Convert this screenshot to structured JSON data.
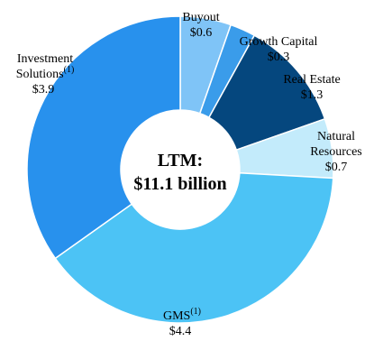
{
  "chart_data": {
    "type": "pie",
    "donut": true,
    "center_label": [
      "LTM:",
      "$11.1 billion"
    ],
    "unit": "$",
    "slices": [
      {
        "label": "Buyout",
        "superscript": "",
        "value": 0.6,
        "value_text": "$0.6",
        "color": "#7fc4f7"
      },
      {
        "label": "Growth Capital",
        "superscript": "",
        "value": 0.3,
        "value_text": "$0.3",
        "color": "#3a9cea"
      },
      {
        "label": "Real Estate",
        "superscript": "",
        "value": 1.3,
        "value_text": "$1.3",
        "color": "#05477e"
      },
      {
        "label": "Natural Resources",
        "label_lines": [
          "Natural",
          "Resources"
        ],
        "superscript": "",
        "value": 0.7,
        "value_text": "$0.7",
        "color": "#c3ebfb"
      },
      {
        "label": "GMS",
        "superscript": "(1)",
        "value": 4.4,
        "value_text": "$4.4",
        "color": "#4cc3f5"
      },
      {
        "label": "Investment Solutions",
        "label_lines": [
          "Investment",
          "Solutions"
        ],
        "superscript": "(1)",
        "value": 3.9,
        "value_text": "$3.9",
        "color": "#2891ed"
      }
    ]
  }
}
